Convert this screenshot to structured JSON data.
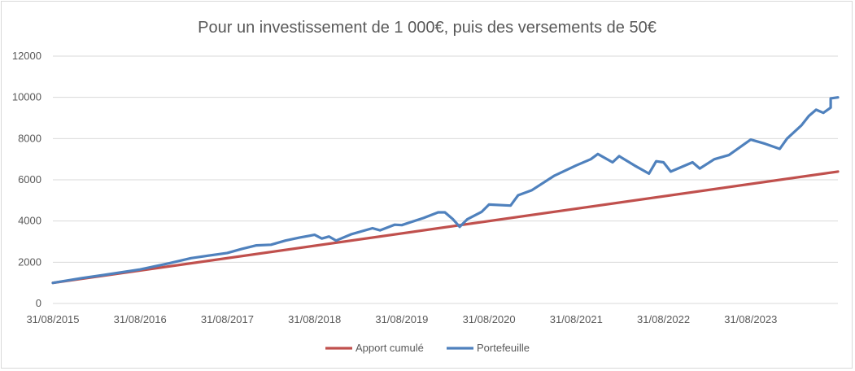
{
  "chart_data": {
    "type": "line",
    "title": "Pour un investissement de 1 000€, puis des versements de 50€",
    "xlabel": "",
    "ylabel": "",
    "ylim": [
      0,
      12000
    ],
    "yticks": [
      0,
      2000,
      4000,
      6000,
      8000,
      10000,
      12000
    ],
    "xticks": [
      "31/08/2015",
      "31/08/2016",
      "31/08/2017",
      "31/08/2018",
      "31/08/2019",
      "31/08/2020",
      "31/08/2021",
      "31/08/2022",
      "31/08/2023"
    ],
    "x_start": "31/08/2015",
    "x_end": "31/08/2024",
    "grid": true,
    "legend_position": "bottom",
    "series": [
      {
        "name": "Apport cumulé",
        "color": "#c0504d",
        "line": "linear",
        "start": {
          "date": "31/08/2015",
          "value": 1000
        },
        "end": {
          "date": "31/08/2024",
          "value": 6400
        }
      },
      {
        "name": "Portefeuille",
        "color": "#4f81bd",
        "points": [
          [
            "31/08/2015",
            1000
          ],
          [
            "31/12/2015",
            1230
          ],
          [
            "31/03/2016",
            1380
          ],
          [
            "31/08/2016",
            1650
          ],
          [
            "31/12/2016",
            1950
          ],
          [
            "31/03/2017",
            2200
          ],
          [
            "31/08/2017",
            2450
          ],
          [
            "31/10/2017",
            2650
          ],
          [
            "31/12/2017",
            2820
          ],
          [
            "31/02/2018",
            2850
          ],
          [
            "31/04/2018",
            3050
          ],
          [
            "30/06/2018",
            3200
          ],
          [
            "31/08/2018",
            3330
          ],
          [
            "31/09/2018",
            3150
          ],
          [
            "31/10/2018",
            3250
          ],
          [
            "30/11/2018",
            3050
          ],
          [
            "31/01/2019",
            3350
          ],
          [
            "30/04/2019",
            3650
          ],
          [
            "31/05/2019",
            3550
          ],
          [
            "31/07/2019",
            3820
          ],
          [
            "31/08/2019",
            3800
          ],
          [
            "31/11/2019",
            4150
          ],
          [
            "31/01/2020",
            4420
          ],
          [
            "29/02/2020",
            4420
          ],
          [
            "31/03/2020",
            4100
          ],
          [
            "30/04/2020",
            3720
          ],
          [
            "31/05/2020",
            4080
          ],
          [
            "31/07/2020",
            4450
          ],
          [
            "31/08/2020",
            4800
          ],
          [
            "30/11/2020",
            4750
          ],
          [
            "31/12/2020",
            5250
          ],
          [
            "28/02/2021",
            5500
          ],
          [
            "31/05/2021",
            6200
          ],
          [
            "31/08/2021",
            6700
          ],
          [
            "31/10/2021",
            7000
          ],
          [
            "30/11/2021",
            7250
          ],
          [
            "31/01/2022",
            6850
          ],
          [
            "28/02/2022",
            7150
          ],
          [
            "31/04/2022",
            6700
          ],
          [
            "31/06/2022",
            6300
          ],
          [
            "31/07/2022",
            6900
          ],
          [
            "31/08/2022",
            6850
          ],
          [
            "31/09/2022",
            6400
          ],
          [
            "31/12/2022",
            6850
          ],
          [
            "31/01/2023",
            6550
          ],
          [
            "31/03/2023",
            7000
          ],
          [
            "31/05/2023",
            7200
          ],
          [
            "31/07/2023",
            7700
          ],
          [
            "31/08/2023",
            7950
          ],
          [
            "31/10/2023",
            7750
          ],
          [
            "31/12/2023",
            7500
          ],
          [
            "31/01/2024",
            8000
          ],
          [
            "31/03/2024",
            8650
          ],
          [
            "31/04/2024",
            9100
          ],
          [
            "31/05/2024",
            9400
          ],
          [
            "31/06/2024",
            9250
          ],
          [
            "31/07/2024",
            9500
          ],
          [
            "31/07/2024",
            9950
          ],
          [
            "31/08/2024",
            10000
          ]
        ]
      }
    ]
  }
}
